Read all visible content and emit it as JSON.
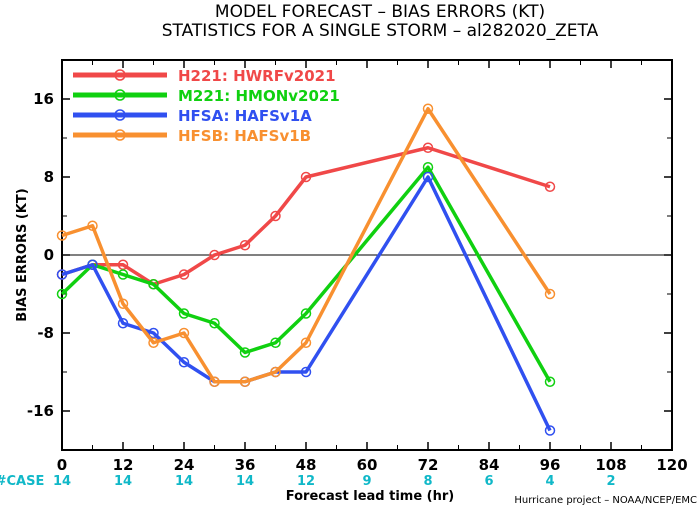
{
  "title_line1": "MODEL FORECAST – BIAS ERRORS (KT)",
  "title_line2": "STATISTICS FOR A SINGLE STORM – al282020_ZETA",
  "case_label": "#CASE",
  "credit": "Hurricane project – NOAA/NCEP/EMC",
  "chart_data": {
    "type": "line",
    "title": "MODEL FORECAST – BIAS ERRORS (KT)",
    "subtitle": "STATISTICS FOR A SINGLE STORM – al282020_ZETA",
    "xlabel": "Forecast lead time (hr)",
    "ylabel": "BIAS ERRORS (KT)",
    "xlim": [
      0,
      120
    ],
    "ylim": [
      -20,
      20
    ],
    "x_ticks": [
      "0",
      "12",
      "24",
      "36",
      "48",
      "60",
      "72",
      "84",
      "96",
      "108",
      "120"
    ],
    "y_ticks": [
      "16",
      "8",
      "0",
      "-8",
      "-16"
    ],
    "y_tick_values": [
      16,
      8,
      0,
      -8,
      -16
    ],
    "x_tick_values": [
      0,
      12,
      24,
      36,
      48,
      60,
      72,
      84,
      96,
      108,
      120
    ],
    "case_counts": [
      {
        "x": 0,
        "label": "14"
      },
      {
        "x": 12,
        "label": "14"
      },
      {
        "x": 24,
        "label": "14"
      },
      {
        "x": 36,
        "label": "14"
      },
      {
        "x": 48,
        "label": "12"
      },
      {
        "x": 60,
        "label": "9"
      },
      {
        "x": 72,
        "label": "8"
      },
      {
        "x": 84,
        "label": "6"
      },
      {
        "x": 96,
        "label": "4"
      },
      {
        "x": 108,
        "label": "2"
      }
    ],
    "zero_line": true,
    "legend_position": "top-left",
    "series": [
      {
        "name": "H221: HWRFv2021",
        "color": "#f04848",
        "points": [
          [
            0,
            -2
          ],
          [
            6,
            -1
          ],
          [
            12,
            -1
          ],
          [
            18,
            -3
          ],
          [
            24,
            -2
          ],
          [
            30,
            0
          ],
          [
            36,
            1
          ],
          [
            42,
            4
          ],
          [
            48,
            8
          ],
          [
            72,
            11
          ],
          [
            96,
            7
          ]
        ]
      },
      {
        "name": "M221: HMONv2021",
        "color": "#10d010",
        "points": [
          [
            0,
            -4
          ],
          [
            6,
            -1
          ],
          [
            12,
            -2
          ],
          [
            18,
            -3
          ],
          [
            24,
            -6
          ],
          [
            30,
            -7
          ],
          [
            36,
            -10
          ],
          [
            42,
            -9
          ],
          [
            48,
            -6
          ],
          [
            72,
            9
          ],
          [
            96,
            -13
          ]
        ]
      },
      {
        "name": "HFSA: HAFSv1A",
        "color": "#3050f0",
        "points": [
          [
            0,
            -2
          ],
          [
            6,
            -1
          ],
          [
            12,
            -7
          ],
          [
            18,
            -8
          ],
          [
            24,
            -11
          ],
          [
            30,
            -13
          ],
          [
            36,
            -13
          ],
          [
            42,
            -12
          ],
          [
            48,
            -12
          ],
          [
            72,
            8
          ],
          [
            96,
            -18
          ]
        ]
      },
      {
        "name": "HFSB: HAFSv1B",
        "color": "#f89030",
        "points": [
          [
            0,
            2
          ],
          [
            6,
            3
          ],
          [
            12,
            -5
          ],
          [
            18,
            -9
          ],
          [
            24,
            -8
          ],
          [
            30,
            -13
          ],
          [
            36,
            -13
          ],
          [
            42,
            -12
          ],
          [
            48,
            -9
          ],
          [
            72,
            15
          ],
          [
            96,
            -4
          ]
        ]
      }
    ]
  }
}
